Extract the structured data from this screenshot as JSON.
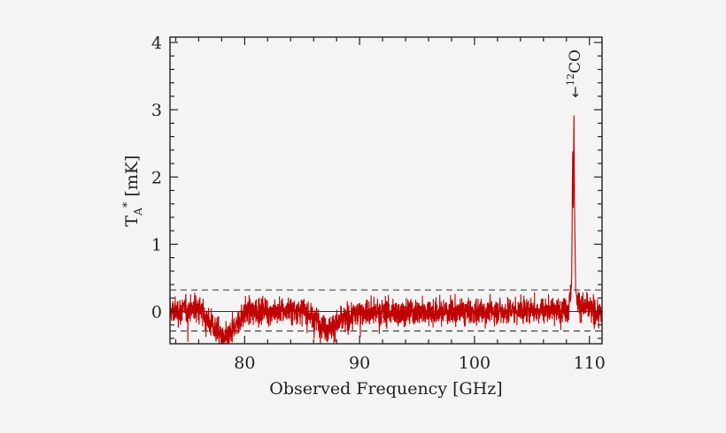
{
  "chart_data": {
    "type": "line",
    "xlabel": "Observed Frequency [GHz]",
    "ylabel_main": "T",
    "ylabel_sub": "A",
    "ylabel_sup": "*",
    "ylabel_unit": "[mK]",
    "xlim": [
      73.5,
      111.1
    ],
    "ylim": [
      -0.48,
      4.08
    ],
    "xticks": [
      80,
      90,
      100,
      110
    ],
    "xtick_labels": [
      "80",
      "90",
      "100",
      "110"
    ],
    "yticks": [
      0,
      1,
      2,
      3,
      4
    ],
    "ytick_labels": [
      "0",
      "1",
      "2",
      "3",
      "4"
    ],
    "noise_band": [
      0.32,
      -0.29
    ],
    "series": [
      {
        "color": "#c00000",
        "noise_rms": 0.1,
        "x": [
          73.5,
          76.0,
          78.3,
          80.0,
          85.0,
          87.2,
          90.0,
          95.0,
          100.0,
          105.0,
          108.2,
          108.45,
          108.55,
          108.6,
          108.65,
          108.7,
          108.75,
          108.8,
          108.9,
          109.2,
          111.1
        ],
        "y": [
          0.0,
          0.05,
          -0.45,
          0.0,
          0.02,
          -0.25,
          0.0,
          -0.02,
          0.0,
          0.02,
          0.05,
          0.4,
          2.5,
          1.5,
          3.03,
          1.6,
          1.0,
          0.35,
          0.2,
          0.1,
          -0.05
        ]
      }
    ],
    "annotations": [
      {
        "text_sup": "12",
        "text": "CO",
        "x": 108.6,
        "y": 3.1,
        "arrow": "↓"
      }
    ]
  }
}
